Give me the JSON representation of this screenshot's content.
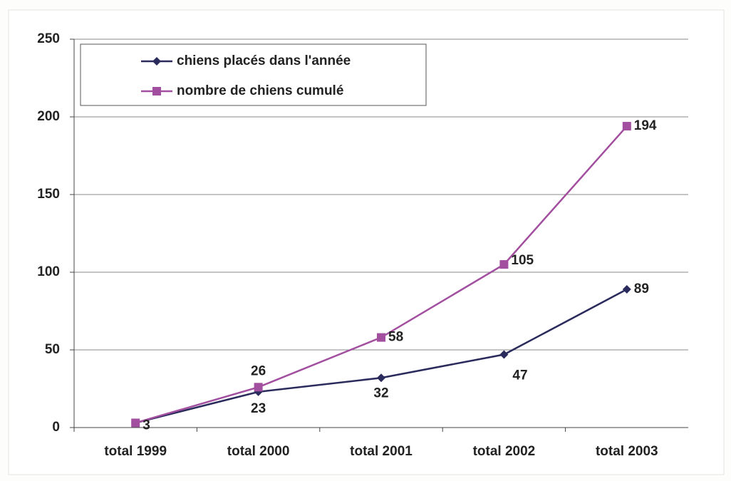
{
  "chart_data": {
    "type": "line",
    "categories": [
      "total 1999",
      "total 2000",
      "total 2001",
      "total 2002",
      "total 2003"
    ],
    "series": [
      {
        "name": "chiens placés dans l'année",
        "color": "#2a2a5c",
        "values": [
          3,
          23,
          32,
          47,
          89
        ]
      },
      {
        "name": "nombre de chiens cumulé",
        "color": "#a24fa0",
        "values": [
          3,
          26,
          58,
          105,
          194
        ]
      }
    ],
    "ylim": [
      0,
      250
    ],
    "yticks": [
      0,
      50,
      100,
      150,
      200,
      250
    ],
    "grid": true,
    "legend": "top-left"
  }
}
